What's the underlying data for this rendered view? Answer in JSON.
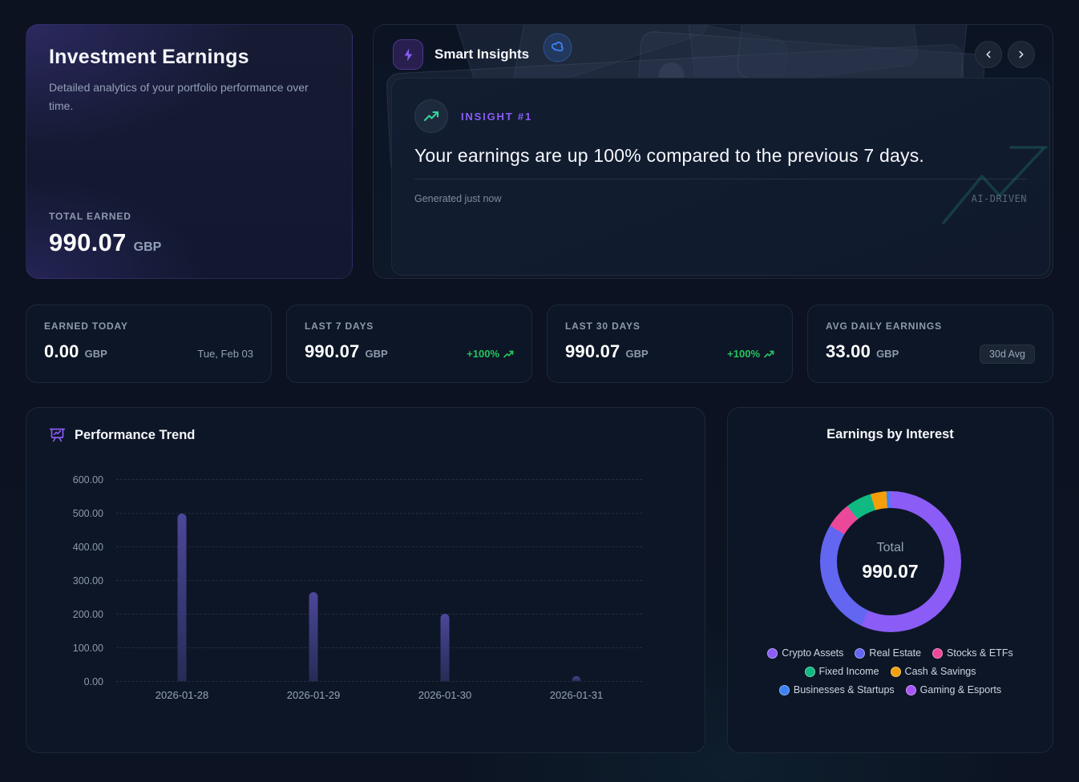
{
  "summary": {
    "title": "Investment Earnings",
    "subtitle": "Detailed analytics of your portfolio performance over time.",
    "total_label": "TOTAL EARNED",
    "total_value": "990.07",
    "currency": "GBP"
  },
  "insights": {
    "title": "Smart Insights",
    "badge_label": "INSIGHT #1",
    "headline": "Your earnings are up 100% compared to the previous 7 days.",
    "generated": "Generated just now",
    "tag": "AI-DRIVEN",
    "header_icon": "lightning-icon",
    "insight_icon": "trending-up-icon",
    "accent_color": "#8b5cf6",
    "trend_color": "#34d399"
  },
  "stats": [
    {
      "label": "EARNED TODAY",
      "value": "0.00",
      "currency": "GBP",
      "meta": "Tue, Feb 03",
      "meta_type": "text"
    },
    {
      "label": "LAST 7 DAYS",
      "value": "990.07",
      "currency": "GBP",
      "meta": "+100%",
      "meta_type": "positive"
    },
    {
      "label": "LAST 30 DAYS",
      "value": "990.07",
      "currency": "GBP",
      "meta": "+100%",
      "meta_type": "positive"
    },
    {
      "label": "AVG DAILY EARNINGS",
      "value": "33.00",
      "currency": "GBP",
      "meta": "30d Avg",
      "meta_type": "badge"
    }
  ],
  "positive_color": "#22c55e",
  "chart_data": [
    {
      "type": "bar",
      "title": "Performance Trend",
      "categories": [
        "2026-01-28",
        "2026-01-29",
        "2026-01-30",
        "2026-01-31"
      ],
      "values": [
        497,
        264,
        199,
        15
      ],
      "xlabel": "",
      "ylabel": "",
      "ylim": [
        0,
        600
      ],
      "yticks": [
        "600.00",
        "500.00",
        "400.00",
        "300.00",
        "200.00",
        "100.00",
        "0.00"
      ],
      "grid": "horizontal-dashed",
      "bar_color": "#45418c",
      "legend_position": "none"
    },
    {
      "type": "pie",
      "style": "donut",
      "title": "Earnings by Interest",
      "center_label": "Total",
      "center_value": "990.07",
      "series": [
        {
          "name": "Crypto Assets",
          "value": 563.0,
          "color": "#8b5cf6"
        },
        {
          "name": "Real Estate",
          "value": 264.0,
          "color": "#6366f1"
        },
        {
          "name": "Stocks & ETFs",
          "value": 59.0,
          "color": "#ec4899"
        },
        {
          "name": "Fixed Income",
          "value": 58.5,
          "color": "#10b981"
        },
        {
          "name": "Cash & Savings",
          "value": 36.0,
          "color": "#f59e0b"
        },
        {
          "name": "Businesses & Startups",
          "value": 9.0,
          "color": "#3b82f6"
        },
        {
          "name": "Gaming & Esports",
          "value": 0.57,
          "color": "#a855f7"
        }
      ],
      "total": 990.07,
      "legend_position": "bottom"
    }
  ]
}
